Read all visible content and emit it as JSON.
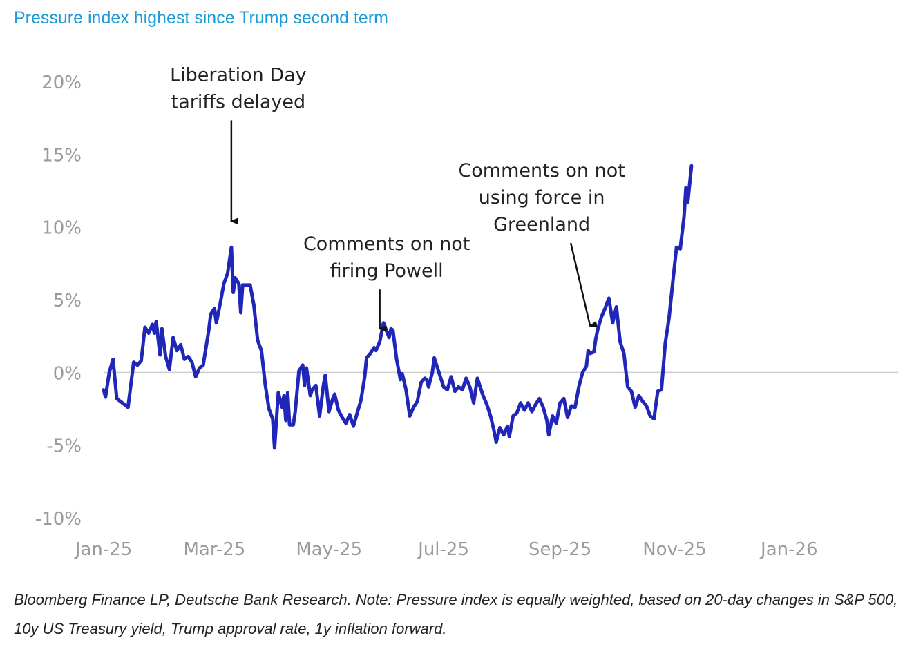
{
  "title": "Pressure index highest since Trump second term",
  "note": "Bloomberg Finance LP, Deutsche Bank Research. Note: Pressure index is equally weighted, based on 20-day changes in S&P 500, 10y US Treasury yield, Trump approval rate, 1y inflation forward.",
  "chart_data": {
    "type": "line",
    "title": "Pressure index highest since Trump second term",
    "xlabel": "",
    "ylabel": "",
    "ylim": [
      -10,
      20
    ],
    "xlim": [
      "2025-01-01",
      "2026-02-28"
    ],
    "grid": false,
    "zero_line": true,
    "color": "#2027b8",
    "y_ticks": [
      "20%",
      "15%",
      "10%",
      "5%",
      "0%",
      "-5%",
      "-10%"
    ],
    "x_ticks": [
      {
        "label": "Jan-25",
        "date": "2025-01-01"
      },
      {
        "label": "Mar-25",
        "date": "2025-03-01"
      },
      {
        "label": "May-25",
        "date": "2025-05-01"
      },
      {
        "label": "Jul-25",
        "date": "2025-07-01"
      },
      {
        "label": "Sep-25",
        "date": "2025-09-01"
      },
      {
        "label": "Nov-25",
        "date": "2025-11-01"
      },
      {
        "label": "Jan-26",
        "date": "2026-01-01"
      }
    ],
    "series": [
      {
        "name": "",
        "points": [
          [
            "2025-01-01",
            -1.2
          ],
          [
            "2025-01-02",
            -1.7
          ],
          [
            "2025-01-04",
            0.0
          ],
          [
            "2025-01-06",
            0.9
          ],
          [
            "2025-01-08",
            -1.8
          ],
          [
            "2025-01-11",
            -2.1
          ],
          [
            "2025-01-14",
            -2.4
          ],
          [
            "2025-01-17",
            0.7
          ],
          [
            "2025-01-19",
            0.5
          ],
          [
            "2025-01-21",
            0.8
          ],
          [
            "2025-01-23",
            3.1
          ],
          [
            "2025-01-25",
            2.7
          ],
          [
            "2025-01-27",
            3.3
          ],
          [
            "2025-01-28",
            2.7
          ],
          [
            "2025-01-29",
            3.5
          ],
          [
            "2025-01-31",
            1.2
          ],
          [
            "2025-02-01",
            3.0
          ],
          [
            "2025-02-03",
            1.1
          ],
          [
            "2025-02-05",
            0.2
          ],
          [
            "2025-02-07",
            2.4
          ],
          [
            "2025-02-09",
            1.5
          ],
          [
            "2025-02-11",
            1.9
          ],
          [
            "2025-02-13",
            0.9
          ],
          [
            "2025-02-15",
            1.1
          ],
          [
            "2025-02-17",
            0.7
          ],
          [
            "2025-02-19",
            -0.3
          ],
          [
            "2025-02-21",
            0.3
          ],
          [
            "2025-02-23",
            0.5
          ],
          [
            "2025-02-26",
            2.9
          ],
          [
            "2025-02-27",
            4.0
          ],
          [
            "2025-03-01",
            4.4
          ],
          [
            "2025-03-02",
            3.4
          ],
          [
            "2025-03-04",
            4.7
          ],
          [
            "2025-03-06",
            6.1
          ],
          [
            "2025-03-08",
            6.8
          ],
          [
            "2025-03-10",
            8.6
          ],
          [
            "2025-03-11",
            5.5
          ],
          [
            "2025-03-12",
            6.5
          ],
          [
            "2025-03-14",
            6.1
          ],
          [
            "2025-03-15",
            4.1
          ],
          [
            "2025-03-16",
            6.0
          ],
          [
            "2025-03-18",
            6.0
          ],
          [
            "2025-03-20",
            6.0
          ],
          [
            "2025-03-22",
            4.6
          ],
          [
            "2025-03-24",
            2.2
          ],
          [
            "2025-03-26",
            1.5
          ],
          [
            "2025-03-28",
            -0.8
          ],
          [
            "2025-03-30",
            -2.5
          ],
          [
            "2025-04-01",
            -3.2
          ],
          [
            "2025-04-02",
            -5.2
          ],
          [
            "2025-04-04",
            -1.4
          ],
          [
            "2025-04-06",
            -2.4
          ],
          [
            "2025-04-07",
            -1.6
          ],
          [
            "2025-04-08",
            -3.3
          ],
          [
            "2025-04-09",
            -1.4
          ],
          [
            "2025-04-10",
            -3.6
          ],
          [
            "2025-04-12",
            -3.6
          ],
          [
            "2025-04-13",
            -2.7
          ],
          [
            "2025-04-15",
            0.1
          ],
          [
            "2025-04-17",
            0.5
          ],
          [
            "2025-04-18",
            -0.9
          ],
          [
            "2025-04-19",
            0.3
          ],
          [
            "2025-04-21",
            -1.6
          ],
          [
            "2025-04-22",
            -1.2
          ],
          [
            "2025-04-24",
            -0.9
          ],
          [
            "2025-04-26",
            -3.0
          ],
          [
            "2025-04-28",
            -0.9
          ],
          [
            "2025-04-29",
            -0.2
          ],
          [
            "2025-05-01",
            -2.7
          ],
          [
            "2025-05-03",
            -1.8
          ],
          [
            "2025-05-04",
            -1.5
          ],
          [
            "2025-05-06",
            -2.6
          ],
          [
            "2025-05-08",
            -3.1
          ],
          [
            "2025-05-10",
            -3.5
          ],
          [
            "2025-05-12",
            -2.9
          ],
          [
            "2025-05-14",
            -3.7
          ],
          [
            "2025-05-16",
            -2.8
          ],
          [
            "2025-05-18",
            -1.9
          ],
          [
            "2025-05-20",
            -0.3
          ],
          [
            "2025-05-21",
            1.0
          ],
          [
            "2025-05-23",
            1.3
          ],
          [
            "2025-05-25",
            1.7
          ],
          [
            "2025-05-26",
            1.5
          ],
          [
            "2025-05-28",
            2.1
          ],
          [
            "2025-05-30",
            3.4
          ],
          [
            "2025-06-02",
            2.4
          ],
          [
            "2025-06-03",
            3.0
          ],
          [
            "2025-06-04",
            2.9
          ],
          [
            "2025-06-06",
            0.9
          ],
          [
            "2025-06-08",
            -0.5
          ],
          [
            "2025-06-09",
            -0.1
          ],
          [
            "2025-06-11",
            -1.2
          ],
          [
            "2025-06-13",
            -3.0
          ],
          [
            "2025-06-15",
            -2.4
          ],
          [
            "2025-06-17",
            -2.0
          ],
          [
            "2025-06-19",
            -0.7
          ],
          [
            "2025-06-21",
            -0.4
          ],
          [
            "2025-06-22",
            -0.5
          ],
          [
            "2025-06-23",
            -1.0
          ],
          [
            "2025-06-25",
            0.0
          ],
          [
            "2025-06-26",
            1.0
          ],
          [
            "2025-07-01",
            -1.0
          ],
          [
            "2025-07-03",
            -1.2
          ],
          [
            "2025-07-05",
            -0.3
          ],
          [
            "2025-07-07",
            -1.3
          ],
          [
            "2025-07-09",
            -1.0
          ],
          [
            "2025-07-11",
            -1.2
          ],
          [
            "2025-07-13",
            -0.4
          ],
          [
            "2025-07-15",
            -1.0
          ],
          [
            "2025-07-17",
            -2.1
          ],
          [
            "2025-07-19",
            -0.4
          ],
          [
            "2025-07-20",
            -0.8
          ],
          [
            "2025-07-22",
            -1.6
          ],
          [
            "2025-07-24",
            -2.2
          ],
          [
            "2025-07-26",
            -3.0
          ],
          [
            "2025-07-28",
            -4.1
          ],
          [
            "2025-07-29",
            -4.8
          ],
          [
            "2025-07-31",
            -3.8
          ],
          [
            "2025-08-02",
            -4.3
          ],
          [
            "2025-08-04",
            -3.7
          ],
          [
            "2025-08-05",
            -4.4
          ],
          [
            "2025-08-07",
            -3.0
          ],
          [
            "2025-08-09",
            -2.8
          ],
          [
            "2025-08-11",
            -2.1
          ],
          [
            "2025-08-13",
            -2.6
          ],
          [
            "2025-08-15",
            -2.1
          ],
          [
            "2025-08-17",
            -2.7
          ],
          [
            "2025-08-19",
            -2.2
          ],
          [
            "2025-08-21",
            -1.8
          ],
          [
            "2025-08-23",
            -2.4
          ],
          [
            "2025-08-25",
            -3.3
          ],
          [
            "2025-08-26",
            -4.3
          ],
          [
            "2025-08-28",
            -3.0
          ],
          [
            "2025-08-30",
            -3.5
          ],
          [
            "2025-09-01",
            -2.1
          ],
          [
            "2025-09-03",
            -1.8
          ],
          [
            "2025-09-05",
            -3.1
          ],
          [
            "2025-09-07",
            -2.3
          ],
          [
            "2025-09-09",
            -2.4
          ],
          [
            "2025-09-11",
            -1.0
          ],
          [
            "2025-09-13",
            0.0
          ],
          [
            "2025-09-15",
            0.4
          ],
          [
            "2025-09-16",
            1.5
          ],
          [
            "2025-09-17",
            1.3
          ],
          [
            "2025-09-19",
            1.4
          ],
          [
            "2025-09-20",
            2.3
          ],
          [
            "2025-09-21",
            2.9
          ],
          [
            "2025-09-23",
            3.8
          ],
          [
            "2025-09-25",
            4.4
          ],
          [
            "2025-09-27",
            5.1
          ],
          [
            "2025-09-29",
            3.4
          ],
          [
            "2025-10-01",
            4.5
          ],
          [
            "2025-10-03",
            2.1
          ],
          [
            "2025-10-05",
            1.3
          ],
          [
            "2025-10-07",
            -1.0
          ],
          [
            "2025-10-09",
            -1.3
          ],
          [
            "2025-10-11",
            -2.4
          ],
          [
            "2025-10-13",
            -1.6
          ],
          [
            "2025-10-15",
            -2.0
          ],
          [
            "2025-10-17",
            -2.3
          ],
          [
            "2025-10-19",
            -3.0
          ],
          [
            "2025-10-21",
            -3.2
          ],
          [
            "2025-10-23",
            -1.3
          ],
          [
            "2025-10-25",
            -1.2
          ],
          [
            "2025-10-27",
            2.0
          ],
          [
            "2025-10-29",
            3.7
          ],
          [
            "2025-10-31",
            6.2
          ],
          [
            "2025-11-02",
            8.6
          ],
          [
            "2025-11-04",
            8.5
          ],
          [
            "2025-11-06",
            10.7
          ],
          [
            "2025-11-07",
            12.7
          ],
          [
            "2025-11-08",
            11.7
          ],
          [
            "2025-11-10",
            14.2
          ]
        ]
      }
    ],
    "annotations": [
      {
        "text_lines": [
          "Liberation Day",
          "tariffs delayed"
        ],
        "arrow_to": [
          "2025-03-10",
          10.3
        ]
      },
      {
        "text_lines": [
          "Comments on not",
          "firing Powell"
        ],
        "arrow_to": [
          "2025-05-28",
          2.9
        ]
      },
      {
        "text_lines": [
          "Comments on not",
          "using force in",
          "Greenland"
        ],
        "arrow_to": [
          "2025-09-17",
          3.1
        ]
      }
    ]
  }
}
